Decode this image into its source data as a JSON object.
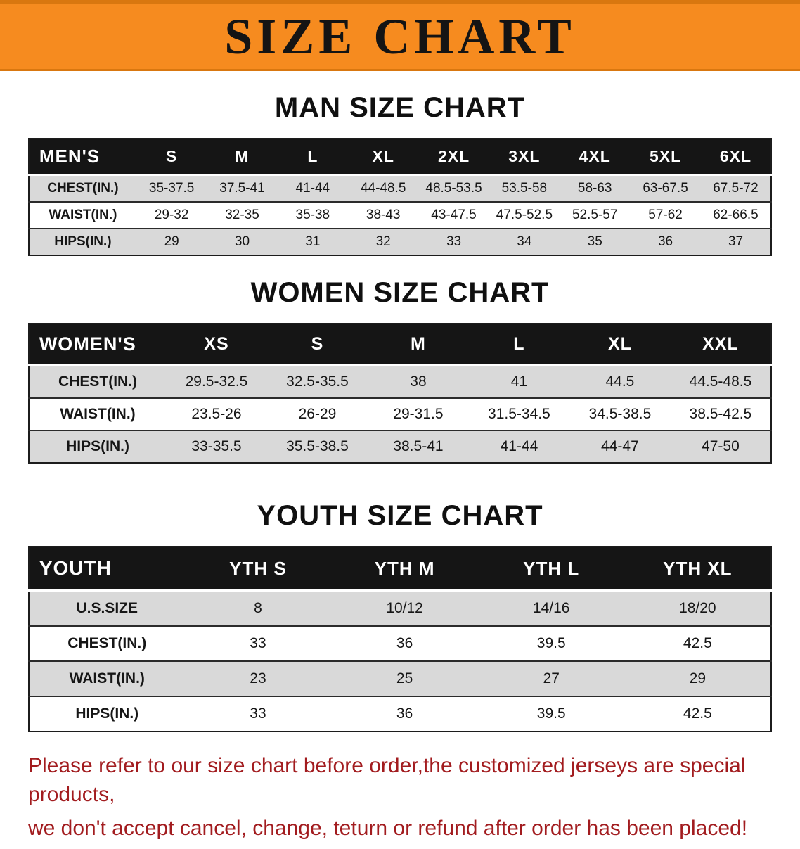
{
  "banner": {
    "title": "SIZE CHART"
  },
  "colors": {
    "accent": "#f68b1f",
    "header_bg": "#151515",
    "row_gray": "#d9d9d9",
    "notice_red": "#a21c1f"
  },
  "sections": [
    {
      "heading": "MAN SIZE CHART",
      "table": {
        "header": [
          "MEN'S",
          "S",
          "M",
          "L",
          "XL",
          "2XL",
          "3XL",
          "4XL",
          "5XL",
          "6XL"
        ],
        "rows": [
          [
            "CHEST(IN.)",
            "35-37.5",
            "37.5-41",
            "41-44",
            "44-48.5",
            "48.5-53.5",
            "53.5-58",
            "58-63",
            "63-67.5",
            "67.5-72"
          ],
          [
            "WAIST(IN.)",
            "29-32",
            "32-35",
            "35-38",
            "38-43",
            "43-47.5",
            "47.5-52.5",
            "52.5-57",
            "57-62",
            "62-66.5"
          ],
          [
            "HIPS(IN.)",
            "29",
            "30",
            "31",
            "32",
            "33",
            "34",
            "35",
            "36",
            "37"
          ]
        ]
      }
    },
    {
      "heading": "WOMEN SIZE CHART",
      "table": {
        "header": [
          "WOMEN'S",
          "XS",
          "S",
          "M",
          "L",
          "XL",
          "XXL"
        ],
        "rows": [
          [
            "CHEST(IN.)",
            "29.5-32.5",
            "32.5-35.5",
            "38",
            "41",
            "44.5",
            "44.5-48.5"
          ],
          [
            "WAIST(IN.)",
            "23.5-26",
            "26-29",
            "29-31.5",
            "31.5-34.5",
            "34.5-38.5",
            "38.5-42.5"
          ],
          [
            "HIPS(IN.)",
            "33-35.5",
            "35.5-38.5",
            "38.5-41",
            "41-44",
            "44-47",
            "47-50"
          ]
        ]
      }
    },
    {
      "heading": "YOUTH SIZE CHART",
      "table": {
        "header": [
          "YOUTH",
          "YTH S",
          "YTH M",
          "YTH L",
          "YTH XL"
        ],
        "rows": [
          [
            "U.S.SIZE",
            "8",
            "10/12",
            "14/16",
            "18/20"
          ],
          [
            "CHEST(IN.)",
            "33",
            "36",
            "39.5",
            "42.5"
          ],
          [
            "WAIST(IN.)",
            "23",
            "25",
            "27",
            "29"
          ],
          [
            "HIPS(IN.)",
            "33",
            "36",
            "39.5",
            "42.5"
          ]
        ]
      }
    }
  ],
  "footer": {
    "line1": "Please refer to our size chart before order,the customized jerseys are special products,",
    "line2": "we don't accept cancel, change, teturn or refund after order has been placed!"
  }
}
